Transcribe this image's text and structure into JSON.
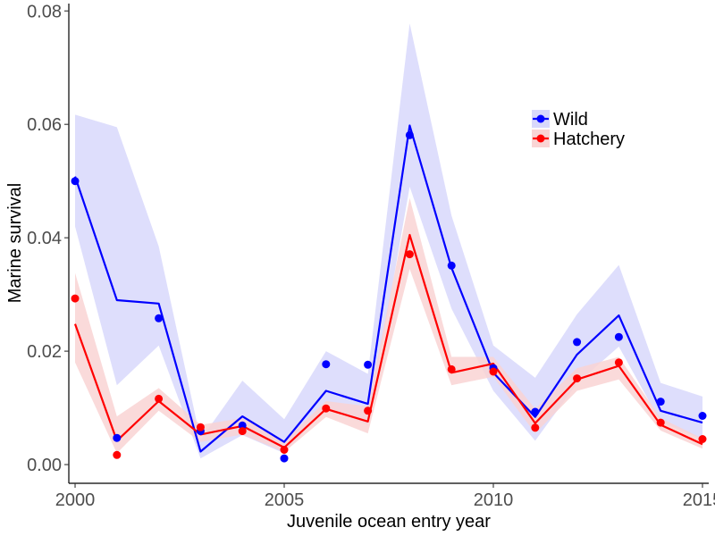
{
  "chart_data": {
    "type": "line",
    "xlabel": "Juvenile ocean entry year",
    "ylabel": "Marine survival",
    "xlim": [
      1999.85,
      2015.15
    ],
    "ylim": [
      -0.0033,
      0.0813
    ],
    "x_ticks": [
      2000,
      2005,
      2010,
      2015
    ],
    "x_tick_labels": [
      "2000",
      "2005",
      "2010",
      "2015"
    ],
    "y_ticks": [
      0.0,
      0.02,
      0.04,
      0.06,
      0.08
    ],
    "y_tick_labels": [
      "0.00",
      "0.02",
      "0.04",
      "0.06",
      "0.08"
    ],
    "grid": false,
    "legend_position": "top-right",
    "x": [
      2000,
      2001,
      2002,
      2003,
      2004,
      2005,
      2006,
      2007,
      2008,
      2009,
      2010,
      2011,
      2012,
      2013,
      2014,
      2015
    ],
    "series": [
      {
        "name": "Wild",
        "color": "#0000ff",
        "band_color": "#d8d8fb",
        "points": [
          0.05,
          0.0047,
          0.0258,
          0.0059,
          0.0069,
          0.0011,
          0.0177,
          0.0176,
          0.0581,
          0.0351,
          0.017,
          0.0093,
          0.0216,
          0.0225,
          0.0111,
          0.0086
        ],
        "fit": [
          0.0508,
          0.029,
          0.0284,
          0.0023,
          0.0085,
          0.004,
          0.013,
          0.0107,
          0.0598,
          0.0347,
          0.0162,
          0.0084,
          0.0194,
          0.0263,
          0.0095,
          0.0074
        ],
        "lower": [
          0.042,
          0.014,
          0.021,
          0.0011,
          0.0052,
          0.002,
          0.01,
          0.007,
          0.049,
          0.0275,
          0.013,
          0.0042,
          0.0143,
          0.0208,
          0.0075,
          0.0045
        ],
        "upper": [
          0.0617,
          0.0595,
          0.0385,
          0.0044,
          0.0148,
          0.008,
          0.02,
          0.016,
          0.0778,
          0.0439,
          0.021,
          0.0153,
          0.0265,
          0.0352,
          0.0144,
          0.012
        ]
      },
      {
        "name": "Hatchery",
        "color": "#ff0000",
        "band_color": "#f9d4d4",
        "points": [
          0.0293,
          0.0017,
          0.0116,
          0.0066,
          0.0059,
          0.0026,
          0.0099,
          0.0095,
          0.0371,
          0.0168,
          0.0164,
          0.0065,
          0.0152,
          0.018,
          0.0074,
          0.0045
        ],
        "fit": [
          0.0248,
          0.0042,
          0.0112,
          0.0053,
          0.0068,
          0.003,
          0.0098,
          0.0076,
          0.0405,
          0.0162,
          0.0178,
          0.0073,
          0.015,
          0.0174,
          0.007,
          0.0036
        ],
        "lower": [
          0.018,
          0.002,
          0.0095,
          0.004,
          0.0053,
          0.0022,
          0.0084,
          0.0055,
          0.0345,
          0.014,
          0.0155,
          0.0055,
          0.013,
          0.015,
          0.006,
          0.0028
        ],
        "upper": [
          0.0338,
          0.0085,
          0.0135,
          0.007,
          0.0082,
          0.0042,
          0.0112,
          0.0103,
          0.047,
          0.019,
          0.019,
          0.0098,
          0.017,
          0.019,
          0.0082,
          0.0046
        ]
      }
    ]
  }
}
